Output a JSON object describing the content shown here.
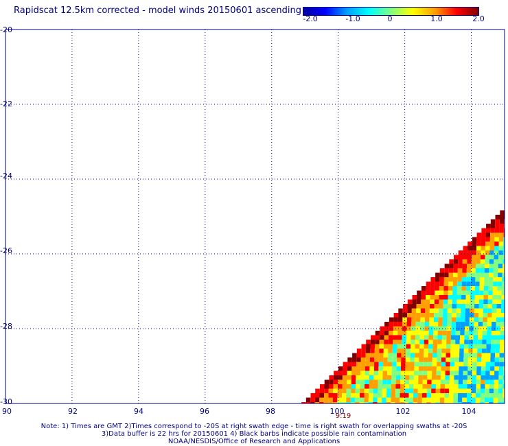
{
  "title": "Rapidscat 12.5km corrected - model winds 20150601 ascending",
  "colorbar": {
    "ticks": [
      "-2.0",
      "-1.0",
      "0",
      "1.0",
      "2.0"
    ],
    "tick_values": [
      -2.0,
      -1.0,
      0,
      1.0,
      2.0
    ],
    "colors": [
      "#0000a0",
      "#0000ff",
      "#00a0ff",
      "#00ffff",
      "#80ff80",
      "#ffff00",
      "#ffa000",
      "#ff0000",
      "#800000"
    ]
  },
  "map": {
    "lon_labels": [
      "90",
      "92",
      "94",
      "96",
      "98",
      "100",
      "102",
      "104"
    ],
    "lat_labels": [
      "-20",
      "-22",
      "-24",
      "-26",
      "-28",
      "-30"
    ],
    "lon_range": [
      90,
      105
    ],
    "lat_range": [
      -30,
      -20
    ],
    "grid_color": "#000080",
    "swath_time": "9:19"
  },
  "notes": [
    "Note: 1) Times are GMT 2)Times correspond to -20S at right swath edge - time is right swath for overlapping swaths at -20S",
    "3)Data buffer is 22 hrs for 20150601 4) Black barbs indicate possible rain contamination",
    "NOAA/NESDIS/Office of Research and Applications"
  ]
}
